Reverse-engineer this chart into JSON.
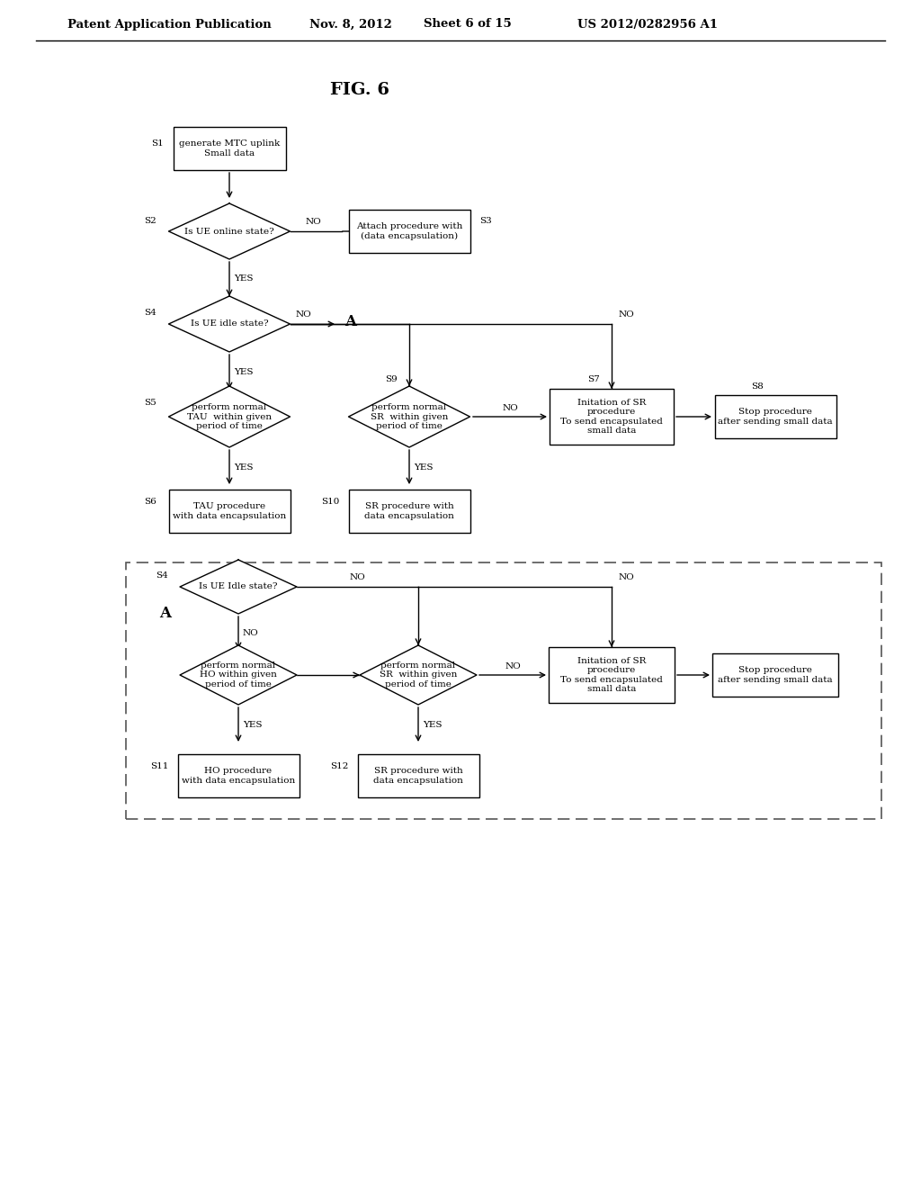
{
  "bg_color": "#ffffff",
  "header_text": "Patent Application Publication",
  "header_date": "Nov. 8, 2012",
  "header_sheet": "Sheet 6 of 15",
  "header_patent": "US 2012/0282956 A1",
  "fig_title": "FIG. 6",
  "line_color": "#000000",
  "box_fill": "#ffffff",
  "text_color": "#000000",
  "font_size": 7.5,
  "header_font_size": 9
}
